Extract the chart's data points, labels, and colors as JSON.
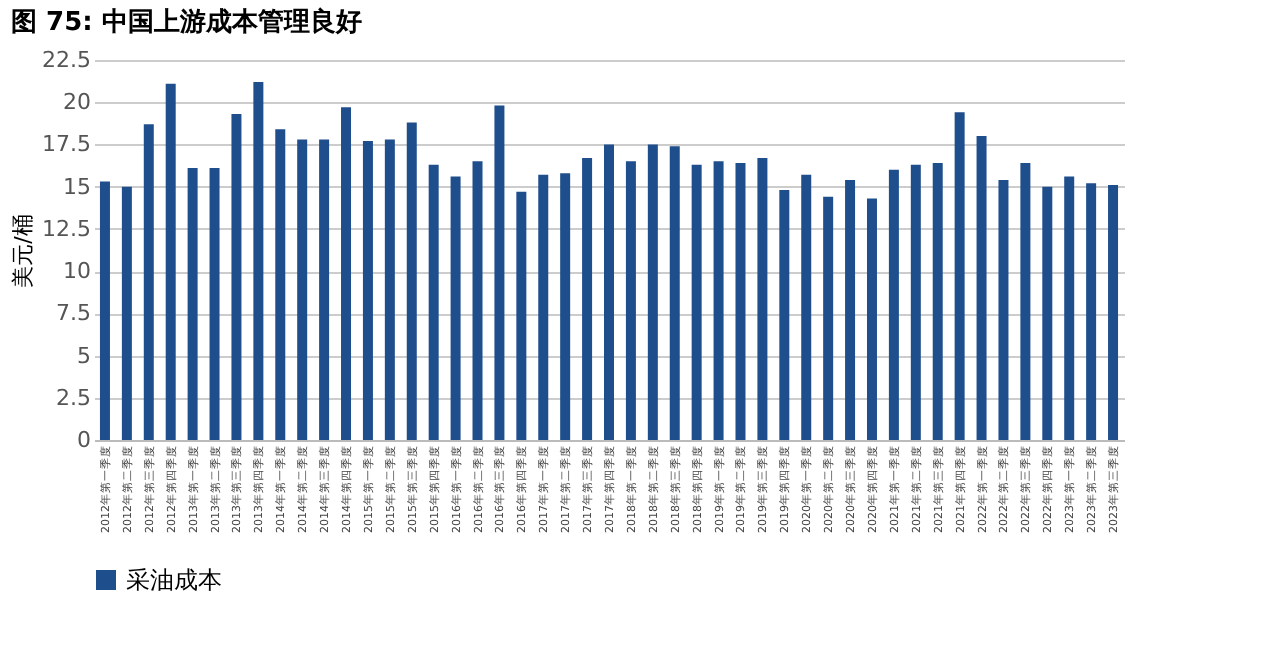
{
  "chart_data": {
    "type": "bar",
    "title": "图 75:  中国上游成本管理良好",
    "ylabel": "美元/桶",
    "categories": [
      "2012年第一季度",
      "2012年第二季度",
      "2012年第三季度",
      "2012年第四季度",
      "2013年第一季度",
      "2013年第二季度",
      "2013年第三季度",
      "2013年第四季度",
      "2014年第一季度",
      "2014年第二季度",
      "2014年第三季度",
      "2014年第四季度",
      "2015年第一季度",
      "2015年第二季度",
      "2015年第三季度",
      "2015年第四季度",
      "2016年第一季度",
      "2016年第二季度",
      "2016年第三季度",
      "2016年第四季度",
      "2017年第一季度",
      "2017年第二季度",
      "2017年第三季度",
      "2017年第四季度",
      "2018年第一季度",
      "2018年第二季度",
      "2018年第三季度",
      "2018年第四季度",
      "2019年第一季度",
      "2019年第二季度",
      "2019年第三季度",
      "2019年第四季度",
      "2020年第一季度",
      "2020年第二季度",
      "2020年第三季度",
      "2020年第四季度",
      "2021年第一季度",
      "2021年第二季度",
      "2021年第三季度",
      "2021年第四季度",
      "2022年第一季度",
      "2022年第二季度",
      "2022年第三季度",
      "2022年第四季度",
      "2023年第一季度",
      "2023年第二季度",
      "2023年第三季度"
    ],
    "series": [
      {
        "name": "采油成本",
        "color": "#1f4e8c",
        "values": [
          15.3,
          15.0,
          18.7,
          21.1,
          16.1,
          16.1,
          19.3,
          21.2,
          18.4,
          17.8,
          17.8,
          19.7,
          17.7,
          17.8,
          18.8,
          16.3,
          15.6,
          16.5,
          19.8,
          14.7,
          15.7,
          15.8,
          16.7,
          17.5,
          16.5,
          17.5,
          17.4,
          16.3,
          16.5,
          16.4,
          16.7,
          14.8,
          15.7,
          14.4,
          15.4,
          14.3,
          16.0,
          16.3,
          16.4,
          19.4,
          18.0,
          15.4,
          16.4,
          15.0,
          15.6,
          15.2,
          15.1
        ]
      }
    ],
    "ylim": [
      0,
      22.5
    ],
    "yticks": [
      0,
      2.5,
      5,
      7.5,
      10,
      12.5,
      15,
      17.5,
      20,
      22.5
    ],
    "grid": "y",
    "legend": "bottom"
  }
}
